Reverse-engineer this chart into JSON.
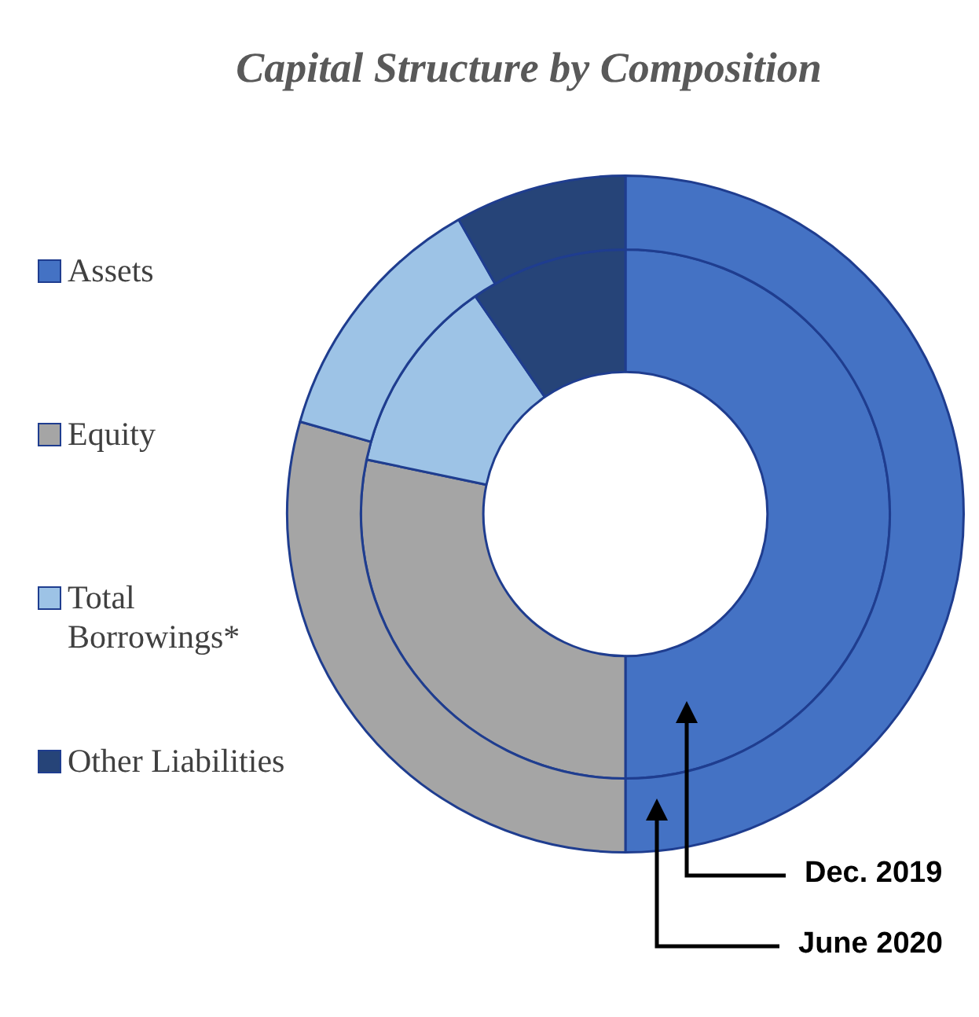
{
  "chart_data": {
    "type": "donut",
    "title": "Capital Structure by Composition",
    "categories": [
      "Assets",
      "Equity",
      "Total Borrowings*",
      "Other Liabilities"
    ],
    "colors": [
      "#4472c4",
      "#a5a5a5",
      "#9dc3e6",
      "#264478"
    ],
    "legend": "left",
    "series": [
      {
        "name": "June 2020",
        "values": [
          50,
          29.4,
          12.4,
          8.2
        ]
      },
      {
        "name": "Dec. 2019",
        "values": [
          50,
          28.3,
          12.1,
          9.6
        ]
      }
    ]
  }
}
